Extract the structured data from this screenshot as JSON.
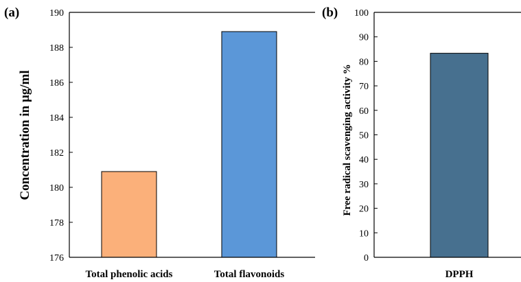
{
  "chart_data": [
    {
      "panel_label": "(a)",
      "type": "bar",
      "categories": [
        "Total phenolic acids",
        "Total flavonoids"
      ],
      "values": [
        180.9,
        188.9
      ],
      "colors": [
        "#FBB07A",
        "#5B97D8"
      ],
      "ylabel": "Concentration in µg/ml",
      "ylim": [
        176,
        190
      ],
      "yticks": [
        176,
        178,
        180,
        182,
        184,
        186,
        188,
        190
      ],
      "grid": false
    },
    {
      "panel_label": "(b)",
      "type": "bar",
      "categories": [
        "DPPH"
      ],
      "values": [
        83.3
      ],
      "colors": [
        "#47708F"
      ],
      "ylabel": "Free radical scavenging activity %",
      "ylim": [
        0,
        100
      ],
      "yticks": [
        0,
        10,
        20,
        30,
        40,
        50,
        60,
        70,
        80,
        90,
        100
      ],
      "grid": false
    }
  ]
}
